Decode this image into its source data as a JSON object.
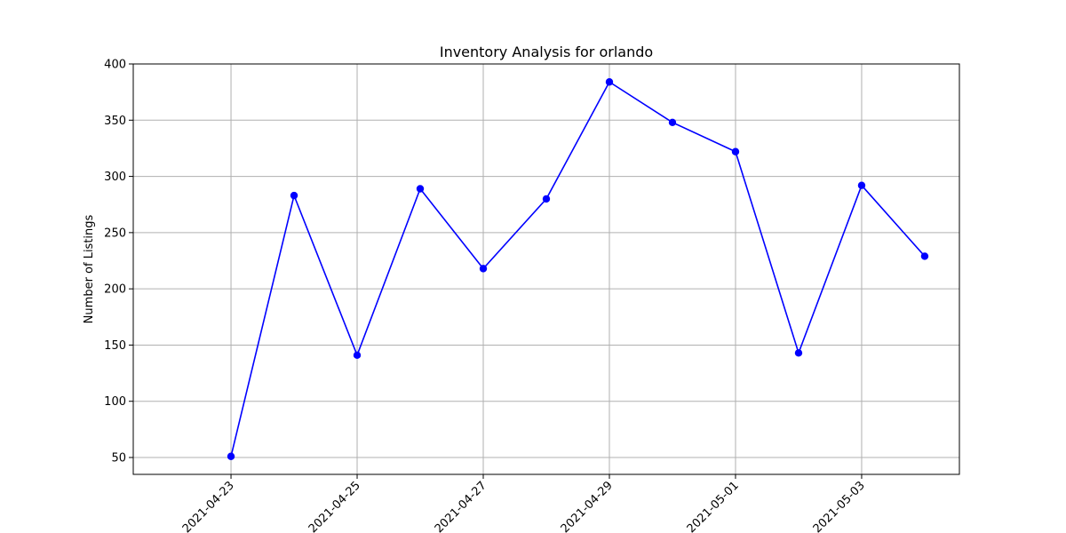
{
  "chart_data": {
    "type": "line",
    "title": "Inventory Analysis for orlando",
    "xlabel": "",
    "ylabel": "Number of Listings",
    "x": [
      "2021-04-23",
      "2021-04-24",
      "2021-04-25",
      "2021-04-26",
      "2021-04-27",
      "2021-04-28",
      "2021-04-29",
      "2021-04-30",
      "2021-05-01",
      "2021-05-02",
      "2021-05-03",
      "2021-05-04"
    ],
    "series": [
      {
        "values": [
          51,
          283,
          141,
          289,
          218,
          280,
          384,
          348,
          322,
          143,
          292,
          229
        ],
        "color": "#0000ff",
        "marker": "circle"
      }
    ],
    "x_tick_labels": [
      "2021-04-23",
      "2021-04-25",
      "2021-04-27",
      "2021-04-29",
      "2021-05-01",
      "2021-05-03"
    ],
    "y_ticks": [
      50,
      100,
      150,
      200,
      250,
      300,
      350,
      400
    ],
    "ylim": [
      35,
      400
    ],
    "xlim": [
      "2021-04-22",
      "2021-05-04"
    ],
    "grid": true
  }
}
